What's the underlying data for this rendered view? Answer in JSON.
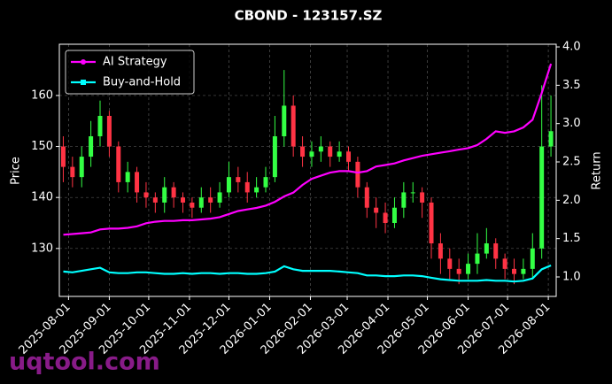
{
  "chart_data": {
    "type": "candlestick",
    "title": "CBOND - 123157.SZ",
    "ylabel": "Price",
    "y2label": "Return",
    "watermark": "uqtool.com",
    "x": [
      "2025-07-28",
      "2025-08-04",
      "2025-08-11",
      "2025-08-18",
      "2025-08-25",
      "2025-09-01",
      "2025-09-08",
      "2025-09-15",
      "2025-09-22",
      "2025-09-29",
      "2025-10-06",
      "2025-10-13",
      "2025-10-20",
      "2025-10-27",
      "2025-11-03",
      "2025-11-10",
      "2025-11-17",
      "2025-11-24",
      "2025-12-01",
      "2025-12-08",
      "2025-12-15",
      "2025-12-22",
      "2025-12-29",
      "2026-01-05",
      "2026-01-12",
      "2026-01-19",
      "2026-01-26",
      "2026-02-02",
      "2026-02-09",
      "2026-02-16",
      "2026-02-23",
      "2026-03-02",
      "2026-03-09",
      "2026-03-16",
      "2026-03-23",
      "2026-03-30",
      "2026-04-06",
      "2026-04-13",
      "2026-04-20",
      "2026-04-27",
      "2026-05-04",
      "2026-05-11",
      "2026-05-18",
      "2026-05-25",
      "2026-06-01",
      "2026-06-08",
      "2026-06-15",
      "2026-06-22",
      "2026-06-29",
      "2026-07-06",
      "2026-07-13",
      "2026-07-20",
      "2026-07-27",
      "2026-08-03"
    ],
    "open": [
      150,
      146,
      144,
      148,
      152,
      156,
      150,
      143,
      145,
      141,
      140,
      139,
      142,
      140,
      139,
      138,
      140,
      139,
      141,
      144,
      143,
      141,
      142,
      144,
      152,
      158,
      150,
      148,
      149,
      150,
      148,
      149,
      147,
      142,
      138,
      137,
      135,
      138,
      141,
      141,
      139,
      131,
      128,
      126,
      125,
      127,
      129,
      131,
      128,
      126,
      125,
      126,
      130,
      150
    ],
    "high": [
      152,
      148,
      150,
      155,
      159,
      157,
      151,
      147,
      146,
      143,
      141,
      144,
      143,
      141,
      140,
      142,
      142,
      143,
      147,
      146,
      145,
      144,
      146,
      156,
      165,
      160,
      152,
      151,
      152,
      151,
      151,
      150,
      148,
      143,
      140,
      139,
      140,
      143,
      143,
      142,
      140,
      133,
      130,
      128,
      129,
      133,
      134,
      132,
      129,
      128,
      128,
      133,
      162,
      160
    ],
    "low": [
      143,
      142,
      142,
      146,
      150,
      148,
      141,
      141,
      139,
      138,
      137,
      137,
      138,
      137,
      136,
      137,
      137,
      138,
      140,
      141,
      139,
      140,
      141,
      143,
      150,
      148,
      146,
      146,
      147,
      146,
      147,
      145,
      140,
      136,
      134,
      133,
      134,
      136,
      139,
      136,
      128,
      125,
      124,
      123,
      124,
      125,
      128,
      126,
      124,
      123,
      124,
      124,
      128,
      148
    ],
    "close": [
      146,
      144,
      148,
      152,
      156,
      150,
      143,
      145,
      141,
      140,
      139,
      142,
      140,
      139,
      138,
      140,
      139,
      141,
      144,
      143,
      141,
      142,
      144,
      152,
      158,
      150,
      148,
      149,
      150,
      148,
      149,
      147,
      142,
      138,
      137,
      135,
      138,
      141,
      141,
      139,
      131,
      128,
      126,
      125,
      127,
      129,
      131,
      128,
      126,
      125,
      126,
      130,
      150,
      153
    ],
    "up_color": "#33ff44",
    "down_color": "#ff3344",
    "series": [
      {
        "name": "AI Strategy",
        "color": "#ff00ff",
        "axis": "y2",
        "values": [
          1.55,
          1.56,
          1.57,
          1.58,
          1.62,
          1.63,
          1.63,
          1.64,
          1.66,
          1.7,
          1.72,
          1.73,
          1.73,
          1.74,
          1.74,
          1.75,
          1.76,
          1.78,
          1.82,
          1.86,
          1.88,
          1.9,
          1.93,
          1.98,
          2.05,
          2.1,
          2.2,
          2.28,
          2.32,
          2.36,
          2.38,
          2.38,
          2.36,
          2.38,
          2.44,
          2.46,
          2.48,
          2.52,
          2.55,
          2.58,
          2.6,
          2.62,
          2.64,
          2.66,
          2.68,
          2.72,
          2.8,
          2.9,
          2.88,
          2.9,
          2.95,
          3.05,
          3.4,
          3.78
        ]
      },
      {
        "name": "Buy-and-Hold",
        "color": "#00ffff",
        "axis": "y2",
        "values": [
          1.07,
          1.06,
          1.08,
          1.1,
          1.12,
          1.06,
          1.05,
          1.05,
          1.06,
          1.06,
          1.05,
          1.04,
          1.04,
          1.05,
          1.04,
          1.05,
          1.05,
          1.04,
          1.05,
          1.05,
          1.04,
          1.04,
          1.05,
          1.07,
          1.14,
          1.1,
          1.08,
          1.08,
          1.08,
          1.08,
          1.07,
          1.06,
          1.05,
          1.02,
          1.02,
          1.01,
          1.01,
          1.02,
          1.02,
          1.01,
          0.99,
          0.97,
          0.96,
          0.95,
          0.95,
          0.95,
          0.96,
          0.95,
          0.95,
          0.94,
          0.95,
          0.98,
          1.1,
          1.15
        ]
      }
    ],
    "xlim": [
      "2025-07-25",
      "2026-08-07"
    ],
    "xticks": [
      "2025-08-01",
      "2025-09-01",
      "2025-10-01",
      "2025-11-01",
      "2025-12-01",
      "2026-01-01",
      "2026-02-01",
      "2026-03-01",
      "2026-04-01",
      "2026-05-01",
      "2026-06-01",
      "2026-07-01",
      "2026-08-01"
    ],
    "ylim": [
      120.6,
      170.05
    ],
    "yticks": [
      130,
      140,
      150,
      160
    ],
    "y2lim": [
      0.746,
      4.035
    ],
    "y2ticks": [
      {
        "value": 1,
        "label": "1.0"
      },
      1.5,
      {
        "value": 2,
        "label": "2.0"
      },
      2.5,
      {
        "value": 3,
        "label": "3.0"
      },
      3.5,
      {
        "value": 4,
        "label": "4.0"
      }
    ],
    "grid": true,
    "legend": "upper left"
  }
}
